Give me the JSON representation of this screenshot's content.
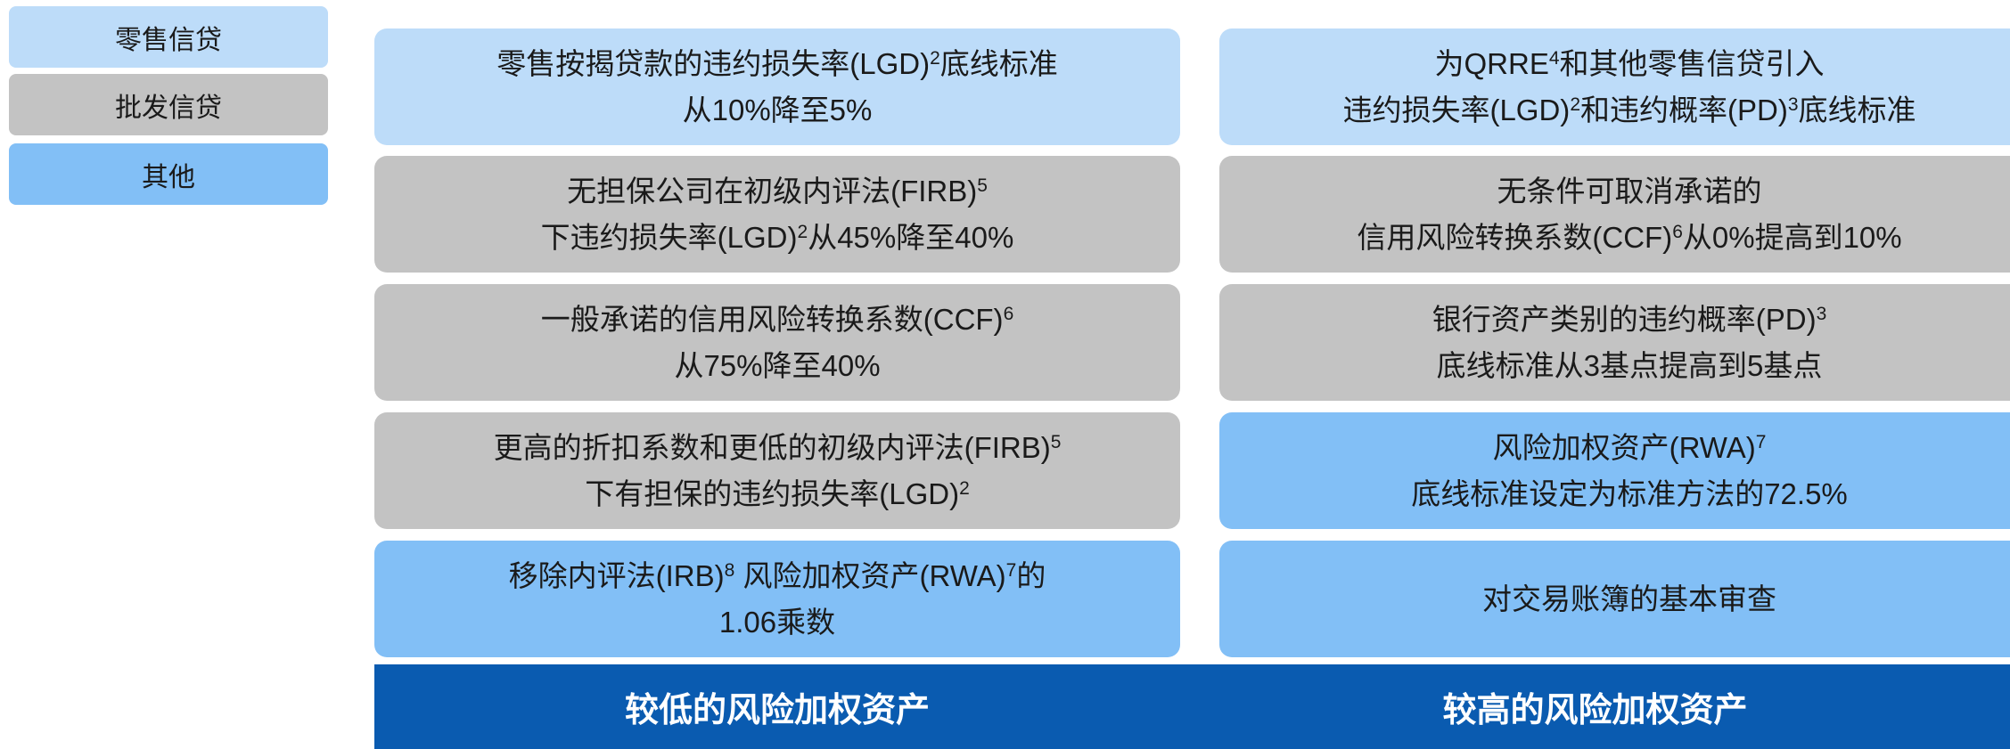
{
  "legend": [
    {
      "label": "零售信贷",
      "kind": "retail"
    },
    {
      "label": "批发信贷",
      "kind": "wholesale"
    },
    {
      "label": "其他",
      "kind": "other"
    }
  ],
  "columns": [
    {
      "footer": "较低的风险加权资产",
      "cells": [
        {
          "kind": "retail",
          "lines": [
            [
              "零售按揭贷款的违约损失率(LGD)",
              {
                "sup": "2"
              },
              "底线标准"
            ],
            [
              "从10%降至5%"
            ]
          ]
        },
        {
          "kind": "wholesale",
          "lines": [
            [
              "无担保公司在初级内评法(FIRB)",
              {
                "sup": "5"
              }
            ],
            [
              "下违约损失率(LGD)",
              {
                "sup": "2"
              },
              "从45%降至40%"
            ]
          ]
        },
        {
          "kind": "wholesale",
          "lines": [
            [
              "一般承诺的信用风险转换系数(CCF)",
              {
                "sup": "6"
              }
            ],
            [
              "从75%降至40%"
            ]
          ]
        },
        {
          "kind": "wholesale",
          "lines": [
            [
              "更高的折扣系数和更低的初级内评法(FIRB)",
              {
                "sup": "5"
              }
            ],
            [
              "下有担保的违约损失率(LGD)",
              {
                "sup": "2"
              }
            ]
          ]
        },
        {
          "kind": "other",
          "lines": [
            [
              "移除内评法(IRB)",
              {
                "sup": "8"
              },
              " 风险加权资产(RWA)",
              {
                "sup": "7"
              },
              "的"
            ],
            [
              "1.06乘数"
            ]
          ]
        }
      ]
    },
    {
      "footer": "较高的风险加权资产",
      "cells": [
        {
          "kind": "retail",
          "lines": [
            [
              "为QRRE",
              {
                "sup": "4"
              },
              "和其他零售信贷引入"
            ],
            [
              "违约损失率(LGD)",
              {
                "sup": "2"
              },
              "和违约概率(PD)",
              {
                "sup": "3"
              },
              "底线标准"
            ]
          ]
        },
        {
          "kind": "wholesale",
          "lines": [
            [
              "无条件可取消承诺的"
            ],
            [
              "信用风险转换系数(CCF)",
              {
                "sup": "6"
              },
              "从0%提高到10%"
            ]
          ]
        },
        {
          "kind": "wholesale",
          "lines": [
            [
              "银行资产类别的违约概率(PD)",
              {
                "sup": "3"
              }
            ],
            [
              "底线标准从3基点提高到5基点"
            ]
          ]
        },
        {
          "kind": "other",
          "lines": [
            [
              "风险加权资产(RWA)",
              {
                "sup": "7"
              }
            ],
            [
              "底线标准设定为标准方法的72.5%"
            ]
          ]
        },
        {
          "kind": "other",
          "lines": [
            [
              "对交易账簿的基本审查"
            ]
          ]
        }
      ]
    }
  ]
}
